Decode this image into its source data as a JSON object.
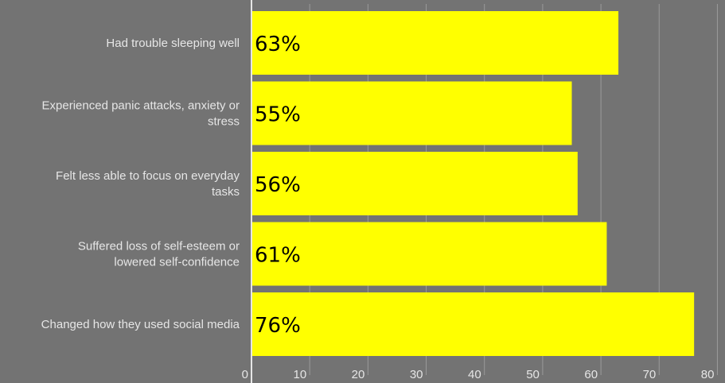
{
  "chart_data": {
    "type": "bar",
    "orientation": "horizontal",
    "categories": [
      "Had trouble sleeping well",
      "Experienced panic attacks, anxiety or stress",
      "Felt less able to focus on everyday tasks",
      "Suffered loss of self-esteem or lowered self-confidence",
      "Changed how they used social media"
    ],
    "category_lines": [
      [
        "Had trouble sleeping well"
      ],
      [
        "Experienced panic attacks, anxiety or",
        "stress"
      ],
      [
        "Felt less able to focus on everyday",
        "tasks"
      ],
      [
        "Suffered loss of self-esteem or",
        "lowered self-confidence"
      ],
      [
        "Changed how they used social media"
      ]
    ],
    "values": [
      63,
      55,
      56,
      61,
      76
    ],
    "data_labels": [
      "63%",
      "55%",
      "56%",
      "61%",
      "76%"
    ],
    "x_ticks": [
      "0",
      "10",
      "20",
      "30",
      "40",
      "50",
      "60",
      "70",
      "80"
    ],
    "xlim": [
      0,
      80
    ],
    "grid": true,
    "colors": {
      "background": "#737373",
      "bar": "#ffff00",
      "grid": "#9a9a9a",
      "axis": "#e6e6e6",
      "label": "#e6e6e6",
      "data_label": "#000000"
    }
  }
}
